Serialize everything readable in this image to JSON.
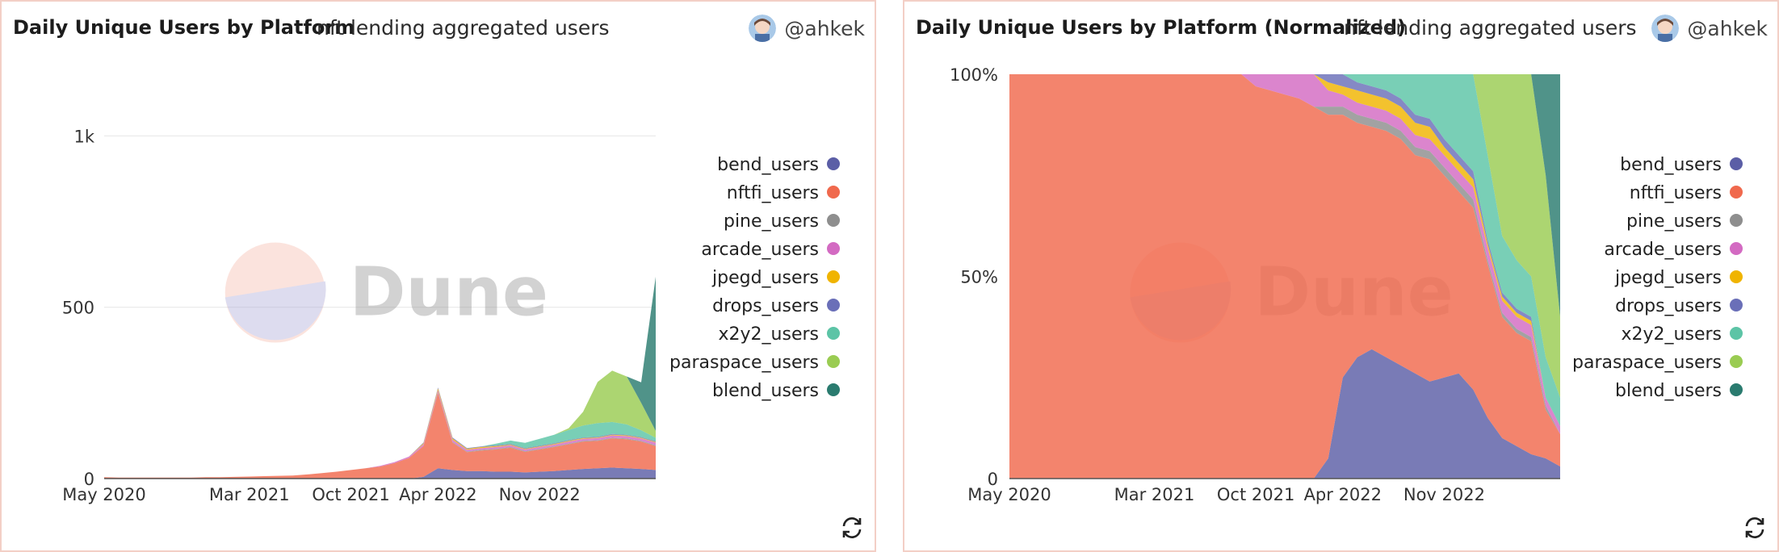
{
  "colors": {
    "bend_users": "#5b5ea6",
    "nftfi_users": "#f0694d",
    "pine_users": "#8e8e8e",
    "arcade_users": "#d36ac2",
    "jpegd_users": "#f0b400",
    "drops_users": "#6a6fb8",
    "x2y2_users": "#5cc4a6",
    "paraspace_users": "#9acc52",
    "blend_users": "#2a7b6f"
  },
  "panels": {
    "left": {
      "title": "Daily Unique Users by Platform",
      "subtitle": "nft lending aggregated users",
      "author": "@ahkek"
    },
    "right": {
      "title": "Daily Unique Users by Platform (Normalized)",
      "subtitle": "nft lending aggregated users",
      "author": "@ahkek"
    }
  },
  "watermark": "Dune",
  "chart_data": [
    {
      "type": "area",
      "title": "Daily Unique Users by Platform",
      "subtitle": "nft lending aggregated users",
      "stacked": true,
      "xlabel": "",
      "ylabel": "",
      "x_range": [
        "2020-05",
        "2023-07"
      ],
      "ylim": [
        0,
        1180
      ],
      "y_ticks": [
        0,
        500,
        1000
      ],
      "y_tick_labels": [
        "0",
        "500",
        "1k"
      ],
      "x_tick_labels": [
        "May 2020",
        "Mar 2021",
        "Oct 2021",
        "Apr 2022",
        "Nov 2022"
      ],
      "x_tick_months": [
        0,
        10,
        17,
        23,
        30
      ],
      "legend_position": "right",
      "grid": true,
      "series": [
        {
          "name": "bend_users"
        },
        {
          "name": "nftfi_users"
        },
        {
          "name": "pine_users"
        },
        {
          "name": "arcade_users"
        },
        {
          "name": "jpegd_users"
        },
        {
          "name": "drops_users"
        },
        {
          "name": "x2y2_users"
        },
        {
          "name": "paraspace_users"
        },
        {
          "name": "blend_users"
        }
      ],
      "notes": "Approximate monthly stacked values read from the chart",
      "months": [
        "2020-05",
        "2020-06",
        "2020-07",
        "2020-08",
        "2020-09",
        "2020-10",
        "2020-11",
        "2020-12",
        "2021-01",
        "2021-02",
        "2021-03",
        "2021-04",
        "2021-05",
        "2021-06",
        "2021-07",
        "2021-08",
        "2021-09",
        "2021-10",
        "2021-11",
        "2021-12",
        "2022-01",
        "2022-02",
        "2022-03",
        "2022-04",
        "2022-05",
        "2022-06",
        "2022-07",
        "2022-08",
        "2022-09",
        "2022-10",
        "2022-11",
        "2022-12",
        "2023-01",
        "2023-02",
        "2023-03",
        "2023-04",
        "2023-05",
        "2023-06",
        "2023-07"
      ],
      "values": {
        "bend_users": [
          0,
          0,
          0,
          0,
          0,
          0,
          0,
          0,
          0,
          0,
          0,
          0,
          0,
          0,
          0,
          0,
          0,
          0,
          0,
          0,
          0,
          0,
          5,
          30,
          25,
          22,
          22,
          20,
          20,
          18,
          20,
          22,
          25,
          28,
          30,
          32,
          30,
          28,
          25
        ],
        "nftfi_users": [
          4,
          3,
          3,
          3,
          3,
          3,
          3,
          4,
          4,
          5,
          6,
          7,
          8,
          9,
          12,
          16,
          20,
          25,
          30,
          35,
          45,
          60,
          90,
          220,
          80,
          55,
          60,
          65,
          70,
          60,
          65,
          70,
          75,
          80,
          80,
          85,
          85,
          80,
          70
        ],
        "pine_users": [
          0,
          0,
          0,
          0,
          0,
          0,
          0,
          0,
          0,
          0,
          0,
          0,
          0,
          0,
          0,
          0,
          0,
          0,
          0,
          0,
          0,
          0,
          0,
          2,
          2,
          2,
          2,
          2,
          2,
          2,
          2,
          2,
          2,
          2,
          2,
          2,
          2,
          2,
          2
        ],
        "arcade_users": [
          0,
          0,
          0,
          0,
          0,
          0,
          0,
          0,
          0,
          0,
          0,
          0,
          0,
          0,
          0,
          0,
          0,
          0,
          0,
          2,
          3,
          4,
          5,
          6,
          6,
          5,
          5,
          5,
          5,
          5,
          5,
          5,
          6,
          6,
          6,
          7,
          7,
          7,
          8
        ],
        "jpegd_users": [
          0,
          0,
          0,
          0,
          0,
          0,
          0,
          0,
          0,
          0,
          0,
          0,
          0,
          0,
          0,
          0,
          0,
          0,
          0,
          0,
          0,
          0,
          3,
          5,
          4,
          3,
          3,
          3,
          2,
          2,
          2,
          2,
          2,
          2,
          2,
          2,
          2,
          2,
          2
        ],
        "drops_users": [
          0,
          0,
          0,
          0,
          0,
          0,
          0,
          0,
          0,
          0,
          0,
          0,
          0,
          0,
          0,
          0,
          0,
          0,
          0,
          0,
          0,
          0,
          2,
          3,
          3,
          2,
          2,
          2,
          2,
          2,
          2,
          2,
          2,
          2,
          2,
          2,
          2,
          2,
          2
        ],
        "x2y2_users": [
          0,
          0,
          0,
          0,
          0,
          0,
          0,
          0,
          0,
          0,
          0,
          0,
          0,
          0,
          0,
          0,
          0,
          0,
          0,
          0,
          0,
          0,
          0,
          0,
          0,
          0,
          0,
          5,
          10,
          15,
          20,
          25,
          30,
          35,
          40,
          35,
          30,
          20,
          10
        ],
        "paraspace_users": [
          0,
          0,
          0,
          0,
          0,
          0,
          0,
          0,
          0,
          0,
          0,
          0,
          0,
          0,
          0,
          0,
          0,
          0,
          0,
          0,
          0,
          0,
          0,
          0,
          0,
          0,
          0,
          0,
          0,
          0,
          0,
          0,
          5,
          40,
          120,
          150,
          140,
          80,
          20
        ],
        "blend_users": [
          0,
          0,
          0,
          0,
          0,
          0,
          0,
          0,
          0,
          0,
          0,
          0,
          0,
          0,
          0,
          0,
          0,
          0,
          0,
          0,
          0,
          0,
          0,
          0,
          0,
          0,
          0,
          0,
          0,
          0,
          0,
          0,
          0,
          0,
          0,
          0,
          0,
          60,
          450
        ]
      }
    },
    {
      "type": "area",
      "title": "Daily Unique Users by Platform (Normalized)",
      "subtitle": "nft lending aggregated users",
      "stacked": true,
      "normalized": true,
      "xlabel": "",
      "ylabel": "",
      "x_range": [
        "2020-05",
        "2023-07"
      ],
      "ylim": [
        0,
        100
      ],
      "y_ticks": [
        0,
        50,
        100
      ],
      "y_tick_labels": [
        "0",
        "50%",
        "100%"
      ],
      "x_tick_labels": [
        "May 2020",
        "Mar 2021",
        "Oct 2021",
        "Apr 2022",
        "Nov 2022"
      ],
      "x_tick_months": [
        0,
        10,
        17,
        23,
        30
      ],
      "legend_position": "right",
      "grid": false,
      "series": [
        {
          "name": "bend_users"
        },
        {
          "name": "nftfi_users"
        },
        {
          "name": "pine_users"
        },
        {
          "name": "arcade_users"
        },
        {
          "name": "jpegd_users"
        },
        {
          "name": "drops_users"
        },
        {
          "name": "x2y2_users"
        },
        {
          "name": "paraspace_users"
        },
        {
          "name": "blend_users"
        }
      ],
      "notes": "Approximate monthly percentage shares read from the chart",
      "months": [
        "2020-05",
        "2020-06",
        "2020-07",
        "2020-08",
        "2020-09",
        "2020-10",
        "2020-11",
        "2020-12",
        "2021-01",
        "2021-02",
        "2021-03",
        "2021-04",
        "2021-05",
        "2021-06",
        "2021-07",
        "2021-08",
        "2021-09",
        "2021-10",
        "2021-11",
        "2021-12",
        "2022-01",
        "2022-02",
        "2022-03",
        "2022-04",
        "2022-05",
        "2022-06",
        "2022-07",
        "2022-08",
        "2022-09",
        "2022-10",
        "2022-11",
        "2022-12",
        "2023-01",
        "2023-02",
        "2023-03",
        "2023-04",
        "2023-05",
        "2023-06",
        "2023-07"
      ],
      "values": {
        "bend_users": [
          0,
          0,
          0,
          0,
          0,
          0,
          0,
          0,
          0,
          0,
          0,
          0,
          0,
          0,
          0,
          0,
          0,
          0,
          0,
          0,
          0,
          0,
          5,
          25,
          30,
          32,
          30,
          28,
          26,
          24,
          25,
          26,
          22,
          15,
          10,
          8,
          6,
          5,
          3
        ],
        "nftfi_users": [
          100,
          100,
          100,
          100,
          100,
          100,
          100,
          100,
          100,
          100,
          100,
          100,
          100,
          100,
          100,
          100,
          100,
          97,
          96,
          95,
          94,
          92,
          85,
          65,
          58,
          55,
          56,
          56,
          54,
          55,
          50,
          45,
          45,
          38,
          30,
          28,
          28,
          12,
          8
        ],
        "pine_users": [
          0,
          0,
          0,
          0,
          0,
          0,
          0,
          0,
          0,
          0,
          0,
          0,
          0,
          0,
          0,
          0,
          0,
          0,
          0,
          0,
          0,
          0,
          2,
          2,
          2,
          2,
          2,
          2,
          2,
          2,
          2,
          2,
          2,
          1,
          1,
          1,
          1,
          1,
          0
        ],
        "arcade_users": [
          0,
          0,
          0,
          0,
          0,
          0,
          0,
          0,
          0,
          0,
          0,
          0,
          0,
          0,
          0,
          0,
          0,
          3,
          4,
          5,
          6,
          8,
          4,
          3,
          3,
          3,
          3,
          3,
          3,
          3,
          3,
          3,
          3,
          3,
          3,
          3,
          3,
          2,
          2
        ],
        "jpegd_users": [
          0,
          0,
          0,
          0,
          0,
          0,
          0,
          0,
          0,
          0,
          0,
          0,
          0,
          0,
          0,
          0,
          0,
          0,
          0,
          0,
          0,
          0,
          2,
          2,
          3,
          3,
          3,
          3,
          3,
          3,
          2,
          2,
          2,
          1,
          1,
          1,
          1,
          0,
          0
        ],
        "drops_users": [
          0,
          0,
          0,
          0,
          0,
          0,
          0,
          0,
          0,
          0,
          0,
          0,
          0,
          0,
          0,
          0,
          0,
          0,
          0,
          0,
          0,
          0,
          2,
          3,
          2,
          2,
          2,
          2,
          2,
          2,
          2,
          2,
          2,
          1,
          1,
          1,
          1,
          0,
          0
        ],
        "x2y2_users": [
          0,
          0,
          0,
          0,
          0,
          0,
          0,
          0,
          0,
          0,
          0,
          0,
          0,
          0,
          0,
          0,
          0,
          0,
          0,
          0,
          0,
          0,
          0,
          0,
          2,
          3,
          4,
          6,
          10,
          11,
          16,
          20,
          24,
          21,
          14,
          12,
          10,
          10,
          7
        ],
        "paraspace_users": [
          0,
          0,
          0,
          0,
          0,
          0,
          0,
          0,
          0,
          0,
          0,
          0,
          0,
          0,
          0,
          0,
          0,
          0,
          0,
          0,
          0,
          0,
          0,
          0,
          0,
          0,
          0,
          0,
          0,
          0,
          0,
          0,
          0,
          20,
          40,
          46,
          50,
          45,
          20
        ],
        "blend_users": [
          0,
          0,
          0,
          0,
          0,
          0,
          0,
          0,
          0,
          0,
          0,
          0,
          0,
          0,
          0,
          0,
          0,
          0,
          0,
          0,
          0,
          0,
          0,
          0,
          0,
          0,
          0,
          0,
          0,
          0,
          0,
          0,
          0,
          0,
          0,
          0,
          0,
          25,
          60
        ]
      }
    }
  ]
}
